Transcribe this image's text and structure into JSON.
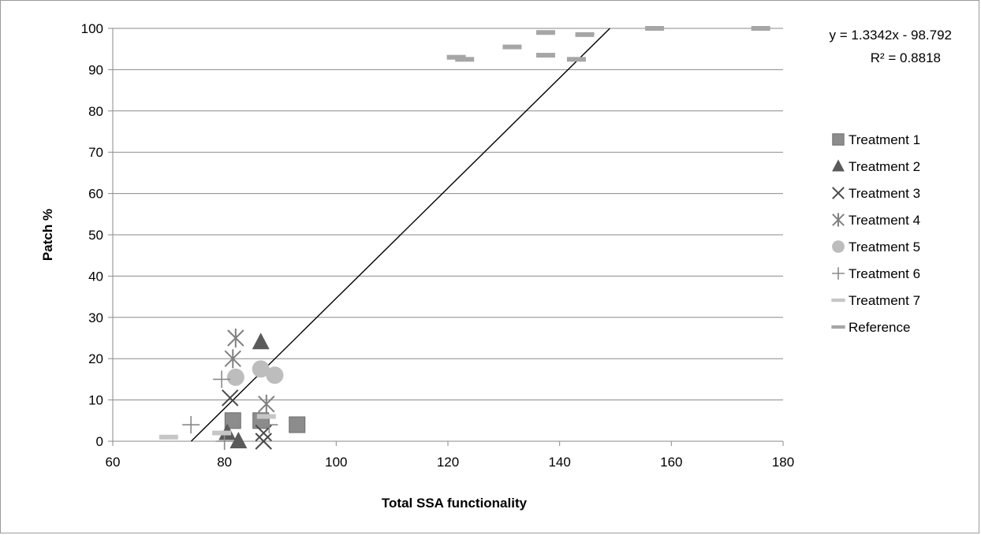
{
  "chart_data": {
    "type": "scatter",
    "title": "",
    "xlabel": "Total SSA functionality",
    "ylabel": "Patch %",
    "xlim": [
      60,
      180
    ],
    "ylim": [
      0,
      100
    ],
    "xticks": [
      60,
      80,
      100,
      120,
      140,
      160,
      180
    ],
    "yticks": [
      0,
      10,
      20,
      30,
      40,
      50,
      60,
      70,
      80,
      90,
      100
    ],
    "grid": "horizontal",
    "legend_position": "right",
    "trendline": {
      "slope": 1.3342,
      "intercept": -98.792,
      "equation_label": "y = 1.3342x - 98.792",
      "r2_label": "R² = 0.8818"
    },
    "series": [
      {
        "name": "Treatment 1",
        "marker": "square",
        "color": "#8c8c8c",
        "points": [
          [
            81.5,
            5
          ],
          [
            86.5,
            5
          ],
          [
            93,
            4
          ]
        ]
      },
      {
        "name": "Treatment 2",
        "marker": "triangle",
        "color": "#5a5a5a",
        "points": [
          [
            86.5,
            24
          ],
          [
            80.5,
            2
          ],
          [
            82.5,
            0
          ]
        ]
      },
      {
        "name": "Treatment 3",
        "marker": "x",
        "color": "#4a4a4a",
        "points": [
          [
            81,
            10.5
          ],
          [
            87,
            2
          ],
          [
            87,
            0
          ]
        ]
      },
      {
        "name": "Treatment 4",
        "marker": "asterisk",
        "color": "#808080",
        "points": [
          [
            82,
            25
          ],
          [
            81.5,
            20
          ],
          [
            87.5,
            9
          ]
        ]
      },
      {
        "name": "Treatment 5",
        "marker": "circle",
        "color": "#bdbdbd",
        "points": [
          [
            82,
            15.5
          ],
          [
            86.5,
            17.5
          ],
          [
            89,
            16
          ]
        ]
      },
      {
        "name": "Treatment 6",
        "marker": "plus",
        "color": "#8a8a8a",
        "points": [
          [
            74,
            4
          ],
          [
            79.5,
            15
          ],
          [
            88,
            4
          ],
          [
            80,
            0
          ]
        ]
      },
      {
        "name": "Treatment 7",
        "marker": "dash",
        "color": "#c6c6c6",
        "points": [
          [
            70,
            1
          ],
          [
            79.5,
            2
          ],
          [
            87.5,
            6
          ]
        ]
      },
      {
        "name": "Reference",
        "marker": "dash",
        "color": "#a6a6a6",
        "points": [
          [
            121.5,
            93
          ],
          [
            123,
            92.5
          ],
          [
            131.5,
            95.5
          ],
          [
            137.5,
            99
          ],
          [
            137.5,
            93.5
          ],
          [
            143,
            92.5
          ],
          [
            144.5,
            98.5
          ],
          [
            157,
            100
          ],
          [
            176,
            100
          ]
        ]
      }
    ]
  }
}
